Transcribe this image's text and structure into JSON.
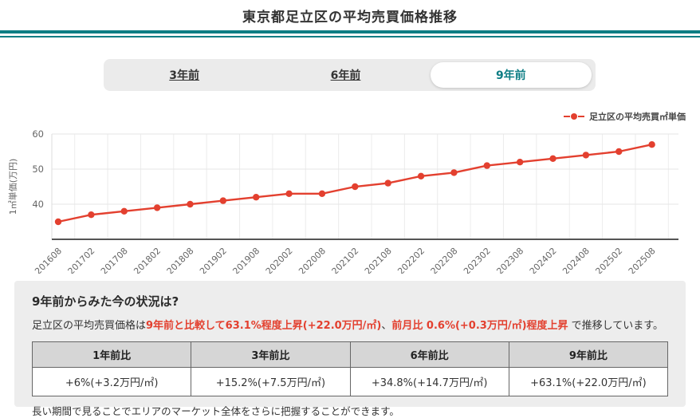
{
  "page": {
    "title": "東京都足立区の平均売買価格推移"
  },
  "tabs": [
    {
      "label": "3年前",
      "selected": false
    },
    {
      "label": "6年前",
      "selected": false
    },
    {
      "label": "9年前",
      "selected": true
    }
  ],
  "chart_data": {
    "type": "line",
    "legend": "足立区の平均売買㎡単価",
    "legend_position": "top-right",
    "ylabel": "1㎡単価(万円)",
    "xlabel": "",
    "categories": [
      "201608",
      "201702",
      "201708",
      "201802",
      "201808",
      "201902",
      "201908",
      "202002",
      "202008",
      "202102",
      "202108",
      "202202",
      "202208",
      "202302",
      "202308",
      "202402",
      "202408",
      "202502",
      "202508"
    ],
    "values": [
      35,
      37,
      38,
      39,
      40,
      41,
      42,
      43,
      43,
      45,
      46,
      48,
      49,
      51,
      52,
      53,
      54,
      55,
      57
    ],
    "ylim": [
      30,
      60
    ],
    "yticks": [
      40,
      50,
      60
    ],
    "grid": true,
    "line_color": "#e3402f"
  },
  "summary": {
    "heading": "9年前からみた今の状況は?",
    "text_prefix": "足立区の平均売買価格は",
    "highlight_1": "9年前と比較して63.1%程度上昇(+22.0万円/㎡)",
    "separator": "、",
    "highlight_2": "前月比 0.6%(+0.3万円/㎡)程度上昇",
    "text_suffix": " で推移しています。",
    "note": "長い期間で見ることでエリアのマーケット全体をさらに把握することができます。"
  },
  "comparison_table": {
    "headers": [
      "1年前比",
      "3年前比",
      "6年前比",
      "9年前比"
    ],
    "values": [
      "+6%(+3.2万円/㎡)",
      "+15.2%(+7.5万円/㎡)",
      "+34.8%(+14.7万円/㎡)",
      "+63.1%(+22.0万円/㎡)"
    ]
  },
  "colors": {
    "accent_teal": "#0c7d84",
    "line_red": "#e3402f"
  }
}
